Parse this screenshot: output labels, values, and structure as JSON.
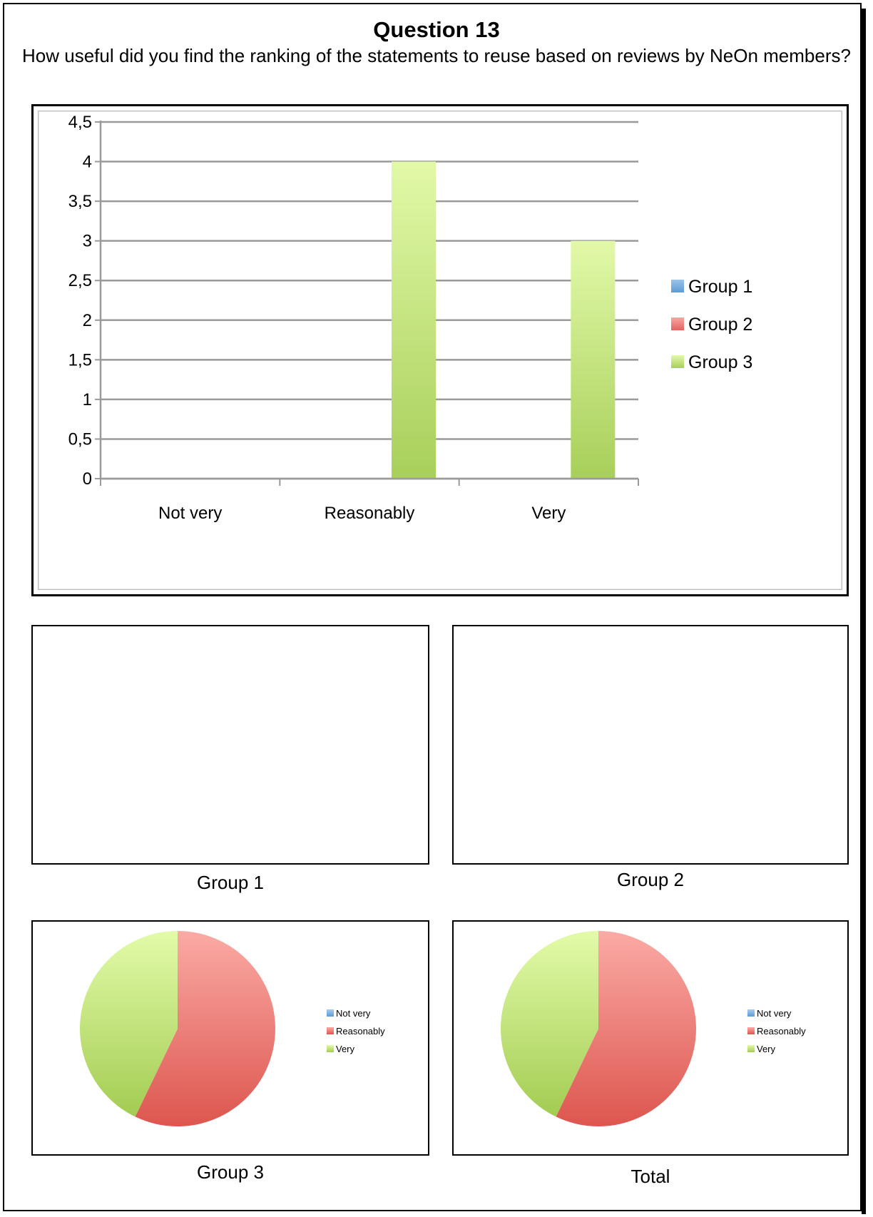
{
  "header": {
    "title": "Question 13",
    "subtitle": "How useful did you find the ranking of the statements to reuse based on reviews by NeOn members?"
  },
  "colors": {
    "group1": "#5b9bd5",
    "group2": "#e8615c",
    "group3": "#a8cf5a",
    "grid": "#9a9a9a"
  },
  "chart_data": [
    {
      "type": "bar",
      "categories": [
        "Not very",
        "Reasonably",
        "Very"
      ],
      "series": [
        {
          "name": "Group 1",
          "values": [
            0,
            0,
            0
          ]
        },
        {
          "name": "Group 2",
          "values": [
            0,
            0,
            0
          ]
        },
        {
          "name": "Group 3",
          "values": [
            0,
            4,
            3
          ]
        }
      ],
      "ylim": [
        0,
        4.5
      ],
      "yticks": [
        "0",
        "0,5",
        "1",
        "1,5",
        "2",
        "2,5",
        "3",
        "3,5",
        "4",
        "4,5"
      ],
      "grid": true,
      "legend": "right"
    },
    {
      "type": "pie",
      "caption": "Group 1",
      "labels": [],
      "values": []
    },
    {
      "type": "pie",
      "caption": "Group 2",
      "labels": [],
      "values": []
    },
    {
      "type": "pie",
      "caption": "Group 3",
      "labels": [
        "Not very",
        "Reasonably",
        "Very"
      ],
      "values": [
        0,
        4,
        3
      ],
      "legend": "right"
    },
    {
      "type": "pie",
      "caption": "Total",
      "labels": [
        "Not very",
        "Reasonably",
        "Very"
      ],
      "values": [
        0,
        4,
        3
      ],
      "legend": "right"
    }
  ]
}
